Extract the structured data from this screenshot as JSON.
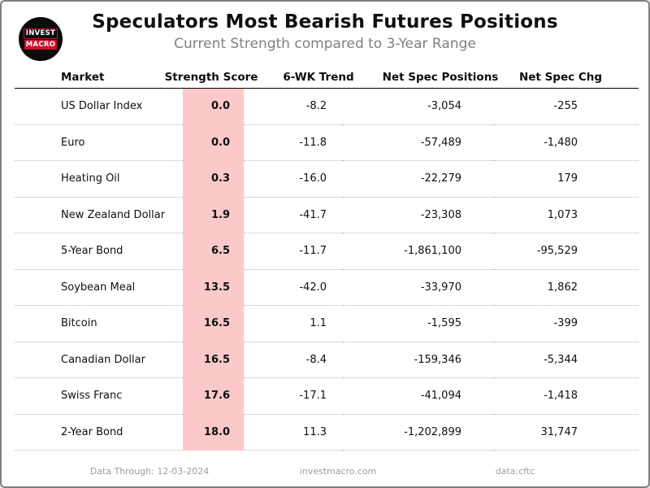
{
  "chart_data": {
    "type": "table",
    "title": "Speculators Most Bearish Futures Positions",
    "subtitle": "Current Strength compared to 3-Year Range",
    "columns": [
      "Market",
      "Strength Score",
      "6-WK Trend",
      "Net Spec Positions",
      "Net Spec Chg"
    ],
    "rows": [
      {
        "market": "US Dollar Index",
        "strength": "0.0",
        "trend": "-8.2",
        "positions": "-3,054",
        "chg": "-255"
      },
      {
        "market": "Euro",
        "strength": "0.0",
        "trend": "-11.8",
        "positions": "-57,489",
        "chg": "-1,480"
      },
      {
        "market": "Heating Oil",
        "strength": "0.3",
        "trend": "-16.0",
        "positions": "-22,279",
        "chg": "179"
      },
      {
        "market": "New Zealand Dollar",
        "strength": "1.9",
        "trend": "-41.7",
        "positions": "-23,308",
        "chg": "1,073"
      },
      {
        "market": "5-Year Bond",
        "strength": "6.5",
        "trend": "-11.7",
        "positions": "-1,861,100",
        "chg": "-95,529"
      },
      {
        "market": "Soybean Meal",
        "strength": "13.5",
        "trend": "-42.0",
        "positions": "-33,970",
        "chg": "1,862"
      },
      {
        "market": "Bitcoin",
        "strength": "16.5",
        "trend": "1.1",
        "positions": "-1,595",
        "chg": "-399"
      },
      {
        "market": "Canadian Dollar",
        "strength": "16.5",
        "trend": "-8.4",
        "positions": "-159,346",
        "chg": "-5,344"
      },
      {
        "market": "Swiss Franc",
        "strength": "17.6",
        "trend": "-17.1",
        "positions": "-41,094",
        "chg": "-1,418"
      },
      {
        "market": "2-Year Bond",
        "strength": "18.0",
        "trend": "11.3",
        "positions": "-1,202,899",
        "chg": "31,747"
      }
    ],
    "layout": {
      "strength_column_highlighted": true,
      "grid": "dotted-row-separators",
      "legend": "none"
    }
  },
  "logo": {
    "line1": "INVEST",
    "line2": "MACRO"
  },
  "footer": {
    "data_through": "Data Through: 12-03-2024",
    "website": "investmacro.com",
    "source": "data:cftc"
  },
  "colors": {
    "strength_highlight": "#fbc9c9",
    "subtitle_gray": "#808080",
    "footer_gray": "#9e9e9e",
    "logo_red": "#c8102e",
    "border_gray": "#7e8083"
  }
}
